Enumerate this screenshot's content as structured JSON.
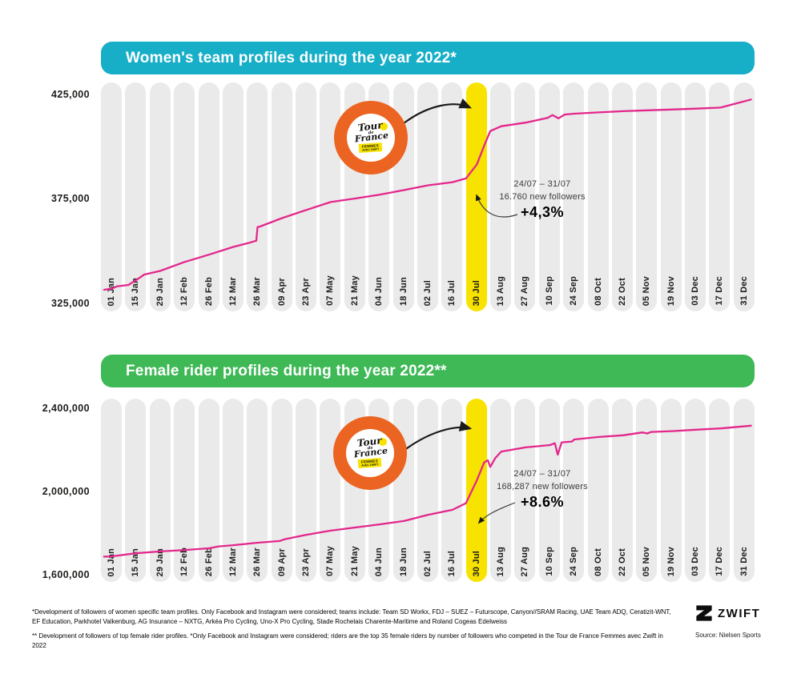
{
  "chart_data": [
    {
      "type": "line",
      "title": "Women's team profiles during the year 2022*",
      "header_color": "#17AEC8",
      "line_color": "#E3278C",
      "highlight_color": "#F8E300",
      "legend_position": "none",
      "grid": false,
      "xlabel": "",
      "ylabel": "followers",
      "ylim": [
        325000,
        425000
      ],
      "yticks": [
        {
          "label": "425,000",
          "value": 425000
        },
        {
          "label": "375,000",
          "value": 375000
        },
        {
          "label": "325,000",
          "value": 325000
        }
      ],
      "categories": [
        "01 Jan",
        "15 Jan",
        "29 Jan",
        "12 Feb",
        "26 Feb",
        "12 Mar",
        "26 Mar",
        "09 Apr",
        "23 Apr",
        "07 May",
        "21 May",
        "04 Jun",
        "18 Jun",
        "02 Jul",
        "16 Jul",
        "30 Jul",
        "13 Aug",
        "27 Aug",
        "10 Sep",
        "24 Sep",
        "08 Oct",
        "22 Oct",
        "05 Nov",
        "19 Nov",
        "03 Dec",
        "17 Dec",
        "31 Dec"
      ],
      "values": [
        332000,
        336000,
        340500,
        344800,
        348300,
        352000,
        361500,
        365800,
        369700,
        373500,
        375200,
        377000,
        379200,
        381500,
        383000,
        391500,
        409800,
        411500,
        415000,
        415800,
        416400,
        417000,
        417400,
        417800,
        418200,
        418700,
        422500
      ],
      "highlight_category": "30 Jul",
      "annotation": {
        "range": "24/07 – 31/07",
        "followers": "16.760 new followers",
        "pct": "+4,3%"
      },
      "detail_points": [
        [
          -0.3,
          331500
        ],
        [
          0,
          332000
        ],
        [
          0.25,
          333200
        ],
        [
          0.7,
          333800
        ],
        [
          1,
          336000
        ],
        [
          1.35,
          338800
        ],
        [
          2,
          340500
        ],
        [
          3,
          344800
        ],
        [
          4,
          348300
        ],
        [
          5,
          352000
        ],
        [
          5.6,
          353800
        ],
        [
          5.95,
          355000
        ],
        [
          6.0,
          361500
        ],
        [
          6.1,
          361800
        ],
        [
          7,
          365800
        ],
        [
          8,
          369700
        ],
        [
          9,
          373500
        ],
        [
          10,
          375200
        ],
        [
          11,
          377000
        ],
        [
          12,
          379200
        ],
        [
          13,
          381500
        ],
        [
          14,
          383000
        ],
        [
          14.55,
          384800
        ],
        [
          15,
          391500
        ],
        [
          15.3,
          400500
        ],
        [
          15.55,
          407500
        ],
        [
          16,
          409800
        ],
        [
          17,
          411500
        ],
        [
          17.9,
          413800
        ],
        [
          18.1,
          415100
        ],
        [
          18.35,
          413600
        ],
        [
          18.6,
          415400
        ],
        [
          19,
          415800
        ],
        [
          20,
          416400
        ],
        [
          21,
          417000
        ],
        [
          22,
          417400
        ],
        [
          23,
          417800
        ],
        [
          24,
          418200
        ],
        [
          25,
          418700
        ],
        [
          26.25,
          422600
        ]
      ]
    },
    {
      "type": "line",
      "title": "Female rider profiles during the year 2022**",
      "header_color": "#3EB956",
      "line_color": "#E3278C",
      "highlight_color": "#F8E300",
      "legend_position": "none",
      "grid": false,
      "xlabel": "",
      "ylabel": "followers",
      "ylim": [
        1600000,
        2400000
      ],
      "yticks": [
        {
          "label": "2,400,000",
          "value": 2400000
        },
        {
          "label": "2,000,000",
          "value": 2000000
        },
        {
          "label": "1,600,000",
          "value": 1600000
        }
      ],
      "categories": [
        "01 Jan",
        "15 Jan",
        "29 Jan",
        "12 Feb",
        "26 Feb",
        "12 Mar",
        "26 Mar",
        "09 Apr",
        "23 Apr",
        "07 May",
        "21 May",
        "04 Jun",
        "18 Jun",
        "02 Jul",
        "16 Jul",
        "30 Jul",
        "13 Aug",
        "27 Aug",
        "10 Sep",
        "24 Sep",
        "08 Oct",
        "22 Oct",
        "05 Nov",
        "19 Nov",
        "03 Dec",
        "17 Dec",
        "31 Dec"
      ],
      "values": [
        1688000,
        1703000,
        1712000,
        1719000,
        1727000,
        1742000,
        1754000,
        1770000,
        1792000,
        1812000,
        1827000,
        1842000,
        1858000,
        1888000,
        1912000,
        2054000,
        2192000,
        2212000,
        2223000,
        2250000,
        2262000,
        2270000,
        2280000,
        2290000,
        2297000,
        2303000,
        2315000
      ],
      "highlight_category": "30 Jul",
      "annotation": {
        "range": "24/07 – 31/07",
        "followers": "168,287 new followers",
        "pct": "+8.6%"
      },
      "detail_points": [
        [
          -0.3,
          1687000
        ],
        [
          0,
          1688000
        ],
        [
          1,
          1703000
        ],
        [
          2,
          1712000
        ],
        [
          3,
          1719000
        ],
        [
          4,
          1727000
        ],
        [
          4.4,
          1736000
        ],
        [
          5,
          1742000
        ],
        [
          6,
          1754000
        ],
        [
          6.9,
          1762000
        ],
        [
          7.1,
          1770000
        ],
        [
          8,
          1792000
        ],
        [
          9,
          1812000
        ],
        [
          10,
          1827000
        ],
        [
          11,
          1842000
        ],
        [
          12,
          1858000
        ],
        [
          13,
          1888000
        ],
        [
          14,
          1912000
        ],
        [
          14.55,
          1944000
        ],
        [
          15,
          2054000
        ],
        [
          15.3,
          2140000
        ],
        [
          15.45,
          2150000
        ],
        [
          15.55,
          2118000
        ],
        [
          15.75,
          2160000
        ],
        [
          16,
          2192000
        ],
        [
          17,
          2212000
        ],
        [
          18,
          2223000
        ],
        [
          18.2,
          2232000
        ],
        [
          18.32,
          2177000
        ],
        [
          18.48,
          2236000
        ],
        [
          18.9,
          2240000
        ],
        [
          19,
          2250000
        ],
        [
          20,
          2262000
        ],
        [
          21,
          2270000
        ],
        [
          21.8,
          2284000
        ],
        [
          22,
          2279000
        ],
        [
          22.15,
          2286000
        ],
        [
          23,
          2290000
        ],
        [
          24,
          2297000
        ],
        [
          25,
          2303000
        ],
        [
          26.25,
          2316000
        ]
      ]
    }
  ],
  "tdf_logo": {
    "text_top": "Tour",
    "text_mid": "de",
    "text_bottom": "France",
    "banner_line1": "FEMMES",
    "banner_line2": "AVEC ZWIFT"
  },
  "footnotes": {
    "note1": "*Development of followers of women specific team profiles. Only Facebook and Instagram were considered; teams include: Team SD Workx, FDJ – SUEZ – Futurscope, Canyon//SRAM Racing, UAE Team ADQ, Ceratizit-WNT, EF Education, Parkhotel Valkenburg, AG Insurance – NXTG, Arkéa Pro Cycling, Uno-X Pro Cycling, Stade Rochelais Charente-Maritime and Roland Cogeas Edelweiss",
    "note2": "** Development of followers of top female rider profiles. *Only Facebook and Instagram were considered; riders are the top 35 female riders by number of followers who competed in the Tour de France Femmes avec Zwift in 2022"
  },
  "branding": {
    "brand": "ZWIFT",
    "source": "Source: Nielsen Sports"
  }
}
